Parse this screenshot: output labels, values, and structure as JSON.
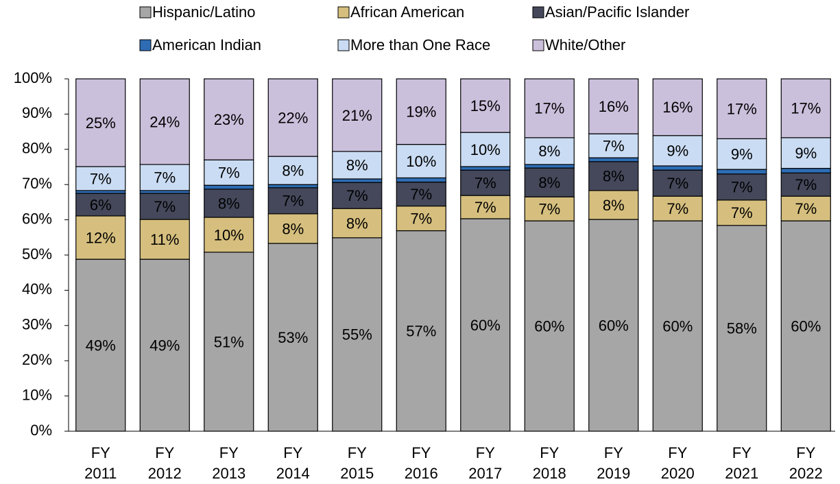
{
  "chart_data": {
    "type": "stacked_bar",
    "categories": [
      "FY 2011",
      "FY 2012",
      "FY 2013",
      "FY 2014",
      "FY 2015",
      "FY 2016",
      "FY 2017",
      "FY 2018",
      "FY 2019",
      "FY 2020",
      "FY 2021",
      "FY 2022"
    ],
    "series": [
      {
        "name": "Hispanic/Latino",
        "color": "#a6a6a6",
        "values": [
          48.8,
          48.8,
          50.8,
          53.3,
          54.9,
          56.9,
          60.3,
          59.7,
          60.1,
          59.7,
          58.4,
          59.7
        ],
        "value_labels": [
          "49%",
          "49%",
          "51%",
          "53%",
          "55%",
          "57%",
          "60%",
          "60%",
          "60%",
          "60%",
          "58%",
          "60%"
        ]
      },
      {
        "name": "African American",
        "color": "#d6bf7e",
        "values": [
          12.3,
          11.3,
          9.9,
          8.4,
          8.3,
          7.0,
          6.6,
          6.8,
          8.2,
          7.0,
          7.2,
          7.0
        ],
        "value_labels": [
          "12%",
          "11%",
          "10%",
          "8%",
          "8%",
          "7%",
          "7%",
          "7%",
          "8%",
          "7%",
          "7%",
          "7%"
        ]
      },
      {
        "name": "Asian/Pacific Islander",
        "color": "#44485a",
        "values": [
          6.4,
          7.4,
          8.0,
          7.4,
          7.4,
          6.8,
          7.2,
          8.2,
          8.2,
          7.4,
          7.4,
          6.6
        ],
        "value_labels": [
          "6%",
          "7%",
          "8%",
          "7%",
          "7%",
          "7%",
          "7%",
          "8%",
          "8%",
          "7%",
          "7%",
          "7%"
        ]
      },
      {
        "name": "American Indian",
        "color": "#2e6db4",
        "values": [
          0.8,
          0.8,
          1.1,
          0.9,
          1.0,
          1.2,
          1.0,
          1.0,
          1.1,
          1.2,
          1.3,
          1.3
        ]
      },
      {
        "name": "More than One Race",
        "color": "#cadcf3",
        "values": [
          6.8,
          7.4,
          7.2,
          8.0,
          7.8,
          9.5,
          9.7,
          7.6,
          6.8,
          8.6,
          8.7,
          8.7
        ],
        "value_labels": [
          "7%",
          "7%",
          "7%",
          "8%",
          "8%",
          "10%",
          "10%",
          "8%",
          "7%",
          "9%",
          "9%",
          "9%"
        ]
      },
      {
        "name": "White/Other",
        "color": "#cbc0dc",
        "values": [
          24.9,
          24.3,
          23.0,
          22.0,
          20.6,
          18.6,
          15.2,
          16.7,
          15.6,
          16.1,
          17.0,
          16.7
        ],
        "value_labels": [
          "25%",
          "24%",
          "23%",
          "22%",
          "21%",
          "19%",
          "15%",
          "17%",
          "16%",
          "16%",
          "17%",
          "17%"
        ]
      }
    ],
    "ylim": [
      0,
      100
    ],
    "yticks": [
      {
        "value": 0,
        "label": "0%"
      },
      {
        "value": 10,
        "label": "10%"
      },
      {
        "value": 20,
        "label": "20%"
      },
      {
        "value": 30,
        "label": "30%"
      },
      {
        "value": 40,
        "label": "40%"
      },
      {
        "value": 50,
        "label": "50%"
      },
      {
        "value": 60,
        "label": "60%"
      },
      {
        "value": 70,
        "label": "70%"
      },
      {
        "value": 80,
        "label": "80%"
      },
      {
        "value": 90,
        "label": "90%"
      },
      {
        "value": 100,
        "label": "100%"
      }
    ],
    "grid": false,
    "legend": "top"
  }
}
